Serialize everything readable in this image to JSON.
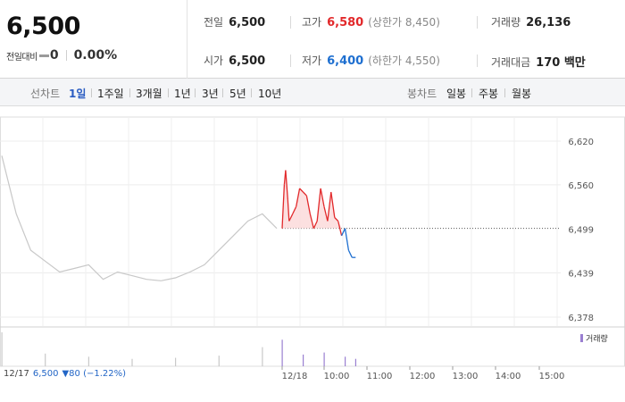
{
  "header": {
    "price": "6,500",
    "change_label": "전일대비",
    "change_value": "0",
    "change_pct": "0.00%",
    "stats": {
      "prev_close_label": "전일",
      "prev_close": "6,500",
      "high_label": "고가",
      "high": "6,580",
      "upper_limit": "(상한가 8,450)",
      "volume_label": "거래량",
      "volume": "26,136",
      "open_label": "시가",
      "open": "6,500",
      "low_label": "저가",
      "low": "6,400",
      "lower_limit": "(하한가 4,550)",
      "amount_label": "거래대금",
      "amount": "170 백만"
    }
  },
  "toolbar": {
    "line_chart_label": "선차트",
    "periods": [
      "1일",
      "1주일",
      "3개월",
      "1년",
      "3년",
      "5년",
      "10년"
    ],
    "active_period": "1일",
    "candle_chart_label": "봉차트",
    "candles": [
      "일봉",
      "주봉",
      "월봉"
    ]
  },
  "footer": {
    "date": "12/17",
    "price": "6,500",
    "change": "▼80 (−1.22%)"
  },
  "volume_legend": "거래량",
  "colors": {
    "up": "#e2292b",
    "down": "#1e6fd0",
    "prev_day": "#c8c8c8",
    "volume": "#9a7fd1",
    "volume_prev": "#c9c9c9"
  },
  "chart_data": {
    "type": "line",
    "y_ticks": [
      6620,
      6560,
      6499,
      6439,
      6378
    ],
    "y_tick_labels": [
      "6,620",
      "6,560",
      "6,499",
      "6,439",
      "6,378"
    ],
    "reference_price": 6500,
    "x_tick_labels": [
      "12/18",
      "10:00",
      "11:00",
      "12:00",
      "13:00",
      "14:00",
      "15:00"
    ],
    "grid": true,
    "legend": "right",
    "series": [
      {
        "x": [
          "12/17 09:00",
          "12/17 09:20",
          "12/17 09:40",
          "12/17 10:00",
          "12/17 10:20",
          "12/17 10:40",
          "12/17 11:00",
          "12/17 11:20",
          "12/17 11:40",
          "12/17 12:00",
          "12/17 12:20",
          "12/17 12:40",
          "12/17 13:00",
          "12/17 13:20",
          "12/17 13:40",
          "12/17 14:00",
          "12/17 14:20",
          "12/17 14:40",
          "12/17 15:00",
          "12/17 15:20"
        ],
        "values": [
          6600,
          6520,
          6470,
          6455,
          6440,
          6445,
          6450,
          6430,
          6440,
          6435,
          6430,
          6428,
          6432,
          6440,
          6450,
          6470,
          6490,
          6510,
          6520,
          6500
        ]
      },
      {
        "x": [
          "09:00",
          "09:03",
          "09:05",
          "09:08",
          "09:10",
          "09:15",
          "09:20",
          "09:25",
          "09:30",
          "09:35",
          "09:40",
          "09:45",
          "09:50",
          "09:55",
          "10:00",
          "10:05",
          "10:10",
          "10:15",
          "10:20",
          "10:25",
          "10:30",
          "10:35",
          "10:40",
          "10:45"
        ],
        "values": [
          6500,
          6560,
          6580,
          6540,
          6510,
          6520,
          6530,
          6555,
          6550,
          6545,
          6520,
          6500,
          6510,
          6555,
          6530,
          6510,
          6550,
          6515,
          6510,
          6490,
          6500,
          6470,
          6460,
          6460
        ]
      }
    ],
    "volume": {
      "x": [
        "12/17 09:00",
        "12/17 10:00",
        "12/17 11:00",
        "12/17 12:00",
        "12/17 13:00",
        "12/17 14:00",
        "12/17 15:00",
        "09:00",
        "09:30",
        "10:00",
        "10:30",
        "10:45"
      ],
      "values": [
        3200,
        1200,
        900,
        700,
        800,
        1000,
        1800,
        2500,
        1100,
        1300,
        900,
        700
      ]
    }
  }
}
